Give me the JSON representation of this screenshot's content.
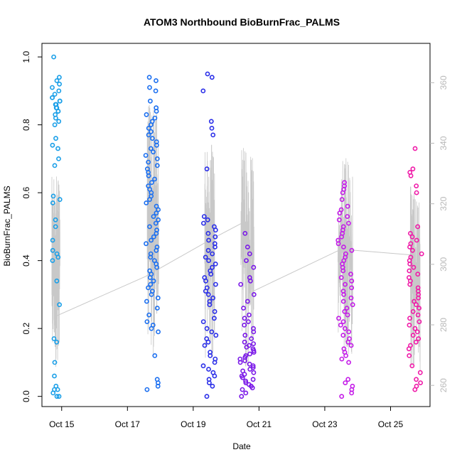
{
  "chart_data": {
    "type": "scatter",
    "title": "ATOM3 Northbound BioBurnFrac_PALMS",
    "xlabel": "Date",
    "ylabel": "BioBurnFrac_PALMS",
    "x_axis": {
      "type": "date",
      "ticks": [
        {
          "value": "2017-10-15",
          "label": "Oct 15"
        },
        {
          "value": "2017-10-17",
          "label": "Oct 17"
        },
        {
          "value": "2017-10-19",
          "label": "Oct 19"
        },
        {
          "value": "2017-10-21",
          "label": "Oct 21"
        },
        {
          "value": "2017-10-23",
          "label": "Oct 23"
        },
        {
          "value": "2017-10-25",
          "label": "Oct 25"
        }
      ],
      "xlim": [
        "2017-10-14.40",
        "2017-10-26.20"
      ]
    },
    "y_axis": {
      "ylim": [
        -0.03,
        1.04
      ],
      "ticks": [
        {
          "value": 0.0,
          "label": "0.0"
        },
        {
          "value": 0.2,
          "label": "0.2"
        },
        {
          "value": 0.4,
          "label": "0.4"
        },
        {
          "value": 0.6,
          "label": "0.6"
        },
        {
          "value": 0.8,
          "label": "0.8"
        },
        {
          "value": 1.0,
          "label": "1.0"
        }
      ]
    },
    "y2_axis": {
      "ylim": [
        253,
        373
      ],
      "ticks": [
        {
          "value": 260,
          "label": "260"
        },
        {
          "value": 280,
          "label": "280"
        },
        {
          "value": 300,
          "label": "300"
        },
        {
          "value": 320,
          "label": "320"
        },
        {
          "value": 340,
          "label": "340"
        },
        {
          "value": 360,
          "label": "360"
        }
      ],
      "color": "#b8b8b8"
    },
    "grid": false,
    "legend": "none",
    "series": [
      {
        "kind": "points",
        "flights": [
          {
            "start": "2017-10-14.70",
            "end": "2017-10-14.95",
            "color": "#1a9fe8",
            "values": [
              1.0,
              0.94,
              0.93,
              0.92,
              0.91,
              0.9,
              0.89,
              0.88,
              0.88,
              0.87,
              0.87,
              0.86,
              0.86,
              0.85,
              0.85,
              0.84,
              0.84,
              0.83,
              0.82,
              0.81,
              0.8,
              0.76,
              0.74,
              0.73,
              0.7,
              0.68,
              0.59,
              0.58,
              0.57,
              0.52,
              0.5,
              0.46,
              0.43,
              0.42,
              0.41,
              0.4,
              0.34,
              0.27,
              0.17,
              0.16,
              0.1,
              0.06,
              0.03,
              0.02,
              0.02,
              0.01,
              0.0,
              0.0
            ]
          },
          {
            "start": "2017-10-17.55",
            "end": "2017-10-17.95",
            "color": "#1b6ff0",
            "values": [
              0.94,
              0.93,
              0.91,
              0.9,
              0.87,
              0.85,
              0.84,
              0.83,
              0.82,
              0.81,
              0.8,
              0.79,
              0.78,
              0.77,
              0.76,
              0.75,
              0.74,
              0.73,
              0.72,
              0.71,
              0.7,
              0.69,
              0.68,
              0.67,
              0.66,
              0.65,
              0.64,
              0.63,
              0.62,
              0.61,
              0.6,
              0.59,
              0.58,
              0.57,
              0.56,
              0.55,
              0.54,
              0.53,
              0.52,
              0.51,
              0.5,
              0.49,
              0.48,
              0.47,
              0.46,
              0.45,
              0.44,
              0.43,
              0.42,
              0.41,
              0.4,
              0.39,
              0.38,
              0.37,
              0.36,
              0.35,
              0.34,
              0.33,
              0.32,
              0.31,
              0.3,
              0.29,
              0.28,
              0.26,
              0.24,
              0.22,
              0.21,
              0.2,
              0.19,
              0.12,
              0.05,
              0.04,
              0.03,
              0.02
            ]
          },
          {
            "start": "2017-10-19.30",
            "end": "2017-10-19.70",
            "color": "#2a2ee8",
            "values": [
              0.95,
              0.94,
              0.9,
              0.81,
              0.79,
              0.77,
              0.67,
              0.53,
              0.52,
              0.51,
              0.5,
              0.49,
              0.48,
              0.47,
              0.46,
              0.45,
              0.44,
              0.43,
              0.42,
              0.41,
              0.4,
              0.39,
              0.38,
              0.37,
              0.36,
              0.35,
              0.34,
              0.33,
              0.32,
              0.31,
              0.3,
              0.29,
              0.28,
              0.27,
              0.25,
              0.23,
              0.22,
              0.2,
              0.19,
              0.18,
              0.17,
              0.16,
              0.15,
              0.13,
              0.12,
              0.11,
              0.1,
              0.09,
              0.08,
              0.07,
              0.06,
              0.05,
              0.04,
              0.03,
              0.0
            ]
          },
          {
            "start": "2017-10-20.40",
            "end": "2017-10-20.85",
            "color": "#7a18e8",
            "values": [
              0.48,
              0.44,
              0.42,
              0.4,
              0.38,
              0.35,
              0.34,
              0.33,
              0.3,
              0.28,
              0.26,
              0.24,
              0.23,
              0.22,
              0.21,
              0.2,
              0.19,
              0.18,
              0.17,
              0.16,
              0.155,
              0.15,
              0.145,
              0.14,
              0.135,
              0.13,
              0.125,
              0.12,
              0.115,
              0.11,
              0.105,
              0.1,
              0.095,
              0.09,
              0.085,
              0.08,
              0.075,
              0.07,
              0.065,
              0.06,
              0.055,
              0.05,
              0.045,
              0.04,
              0.035,
              0.03,
              0.025,
              0.02,
              0.01,
              0.0
            ]
          },
          {
            "start": "2017-10-23.40",
            "end": "2017-10-23.85",
            "color": "#c41ce8",
            "values": [
              0.63,
              0.62,
              0.61,
              0.6,
              0.58,
              0.56,
              0.55,
              0.54,
              0.53,
              0.52,
              0.51,
              0.5,
              0.49,
              0.48,
              0.47,
              0.46,
              0.45,
              0.44,
              0.43,
              0.42,
              0.41,
              0.4,
              0.39,
              0.38,
              0.37,
              0.36,
              0.35,
              0.34,
              0.33,
              0.32,
              0.31,
              0.3,
              0.29,
              0.28,
              0.27,
              0.26,
              0.25,
              0.24,
              0.23,
              0.22,
              0.21,
              0.2,
              0.19,
              0.18,
              0.17,
              0.16,
              0.15,
              0.14,
              0.13,
              0.12,
              0.11,
              0.1,
              0.05,
              0.04,
              0.03,
              0.02,
              0.01,
              0.0
            ]
          },
          {
            "start": "2017-10-25.55",
            "end": "2017-10-25.95",
            "color": "#f01aa8",
            "values": [
              0.73,
              0.67,
              0.66,
              0.65,
              0.62,
              0.6,
              0.5,
              0.48,
              0.47,
              0.46,
              0.45,
              0.44,
              0.43,
              0.42,
              0.41,
              0.4,
              0.39,
              0.38,
              0.37,
              0.36,
              0.35,
              0.34,
              0.33,
              0.32,
              0.31,
              0.3,
              0.29,
              0.28,
              0.27,
              0.26,
              0.25,
              0.24,
              0.23,
              0.22,
              0.21,
              0.2,
              0.19,
              0.18,
              0.17,
              0.16,
              0.15,
              0.14,
              0.12,
              0.09,
              0.07,
              0.05,
              0.04,
              0.03,
              0.02
            ]
          }
        ]
      },
      {
        "kind": "line",
        "axis": "right",
        "color": "#c8c8c8",
        "points": [
          [
            "2017-10-14.85",
            283
          ],
          [
            "2017-10-17.55",
            296
          ],
          [
            "2017-10-19.50",
            308
          ],
          [
            "2017-10-20.55",
            314
          ],
          [
            "2017-10-20.80",
            291
          ],
          [
            "2017-10-23.50",
            305
          ],
          [
            "2017-10-25.75",
            303
          ]
        ],
        "spikes": [
          {
            "start": "2017-10-14.70",
            "end": "2017-10-14.95",
            "min": 262,
            "max": 333
          },
          {
            "start": "2017-10-17.60",
            "end": "2017-10-17.95",
            "min": 262,
            "max": 358
          },
          {
            "start": "2017-10-19.35",
            "end": "2017-10-19.65",
            "min": 265,
            "max": 346
          },
          {
            "start": "2017-10-20.45",
            "end": "2017-10-20.85",
            "min": 262,
            "max": 345
          },
          {
            "start": "2017-10-23.40",
            "end": "2017-10-23.85",
            "min": 266,
            "max": 339
          },
          {
            "start": "2017-10-25.60",
            "end": "2017-10-25.90",
            "min": 260,
            "max": 330
          }
        ]
      }
    ]
  }
}
